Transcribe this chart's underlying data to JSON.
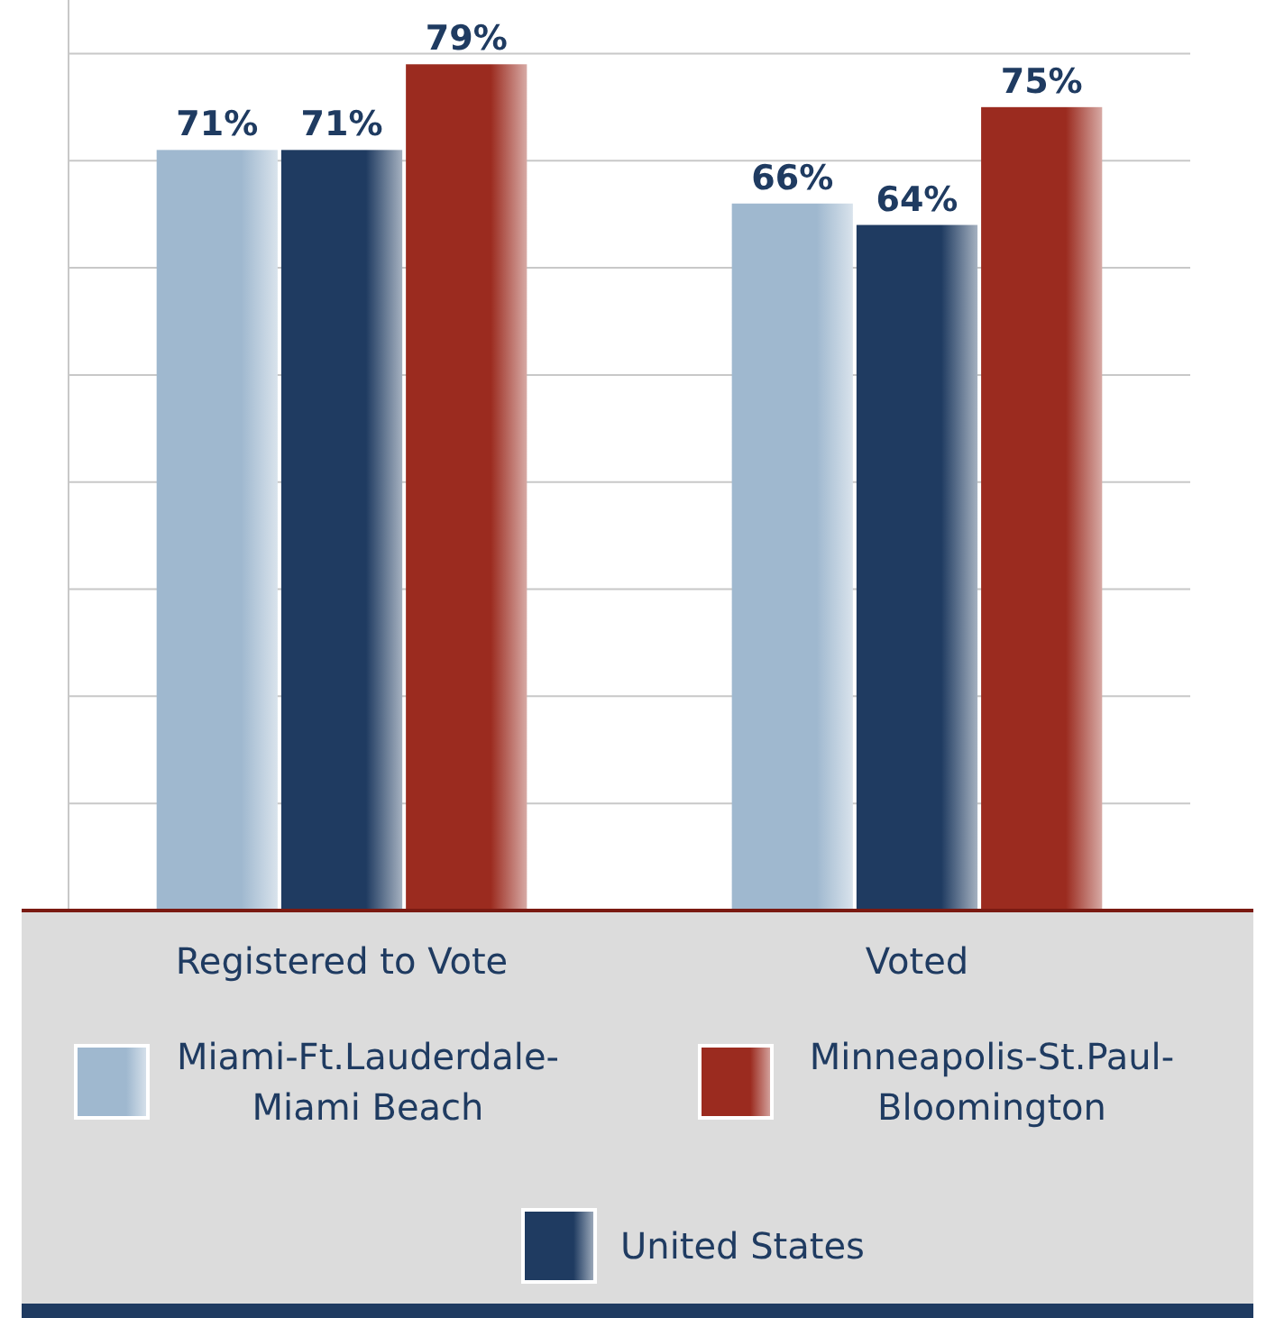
{
  "chart_data": {
    "type": "bar",
    "categories": [
      "Registered to Vote",
      "Voted"
    ],
    "series": [
      {
        "name": "Miami-Ft.Lauderdale-Miami Beach",
        "color": "#9fb8cf",
        "values": [
          71,
          66
        ],
        "value_labels": [
          "71%",
          "66%"
        ]
      },
      {
        "name": "United States",
        "color": "#1f3b61",
        "values": [
          71,
          64
        ],
        "value_labels": [
          "71%",
          "64%"
        ]
      },
      {
        "name": "Minneapolis-St.Paul-Bloomington",
        "color": "#9b2b1f",
        "values": [
          79,
          75
        ],
        "value_labels": [
          "79%",
          "75%"
        ]
      }
    ],
    "ylim": [
      0,
      85
    ],
    "yticks": [
      {
        "value": 10,
        "label": null
      },
      {
        "value": 20,
        "label": null
      },
      {
        "value": 30,
        "label": null
      },
      {
        "value": 40,
        "label": null
      },
      {
        "value": 50,
        "label": null
      },
      {
        "value": 60,
        "label": null
      },
      {
        "value": 70,
        "label": null
      },
      {
        "value": 80,
        "label": null
      }
    ],
    "grid": "y",
    "legend": "bottom",
    "tick_labels": "x"
  }
}
